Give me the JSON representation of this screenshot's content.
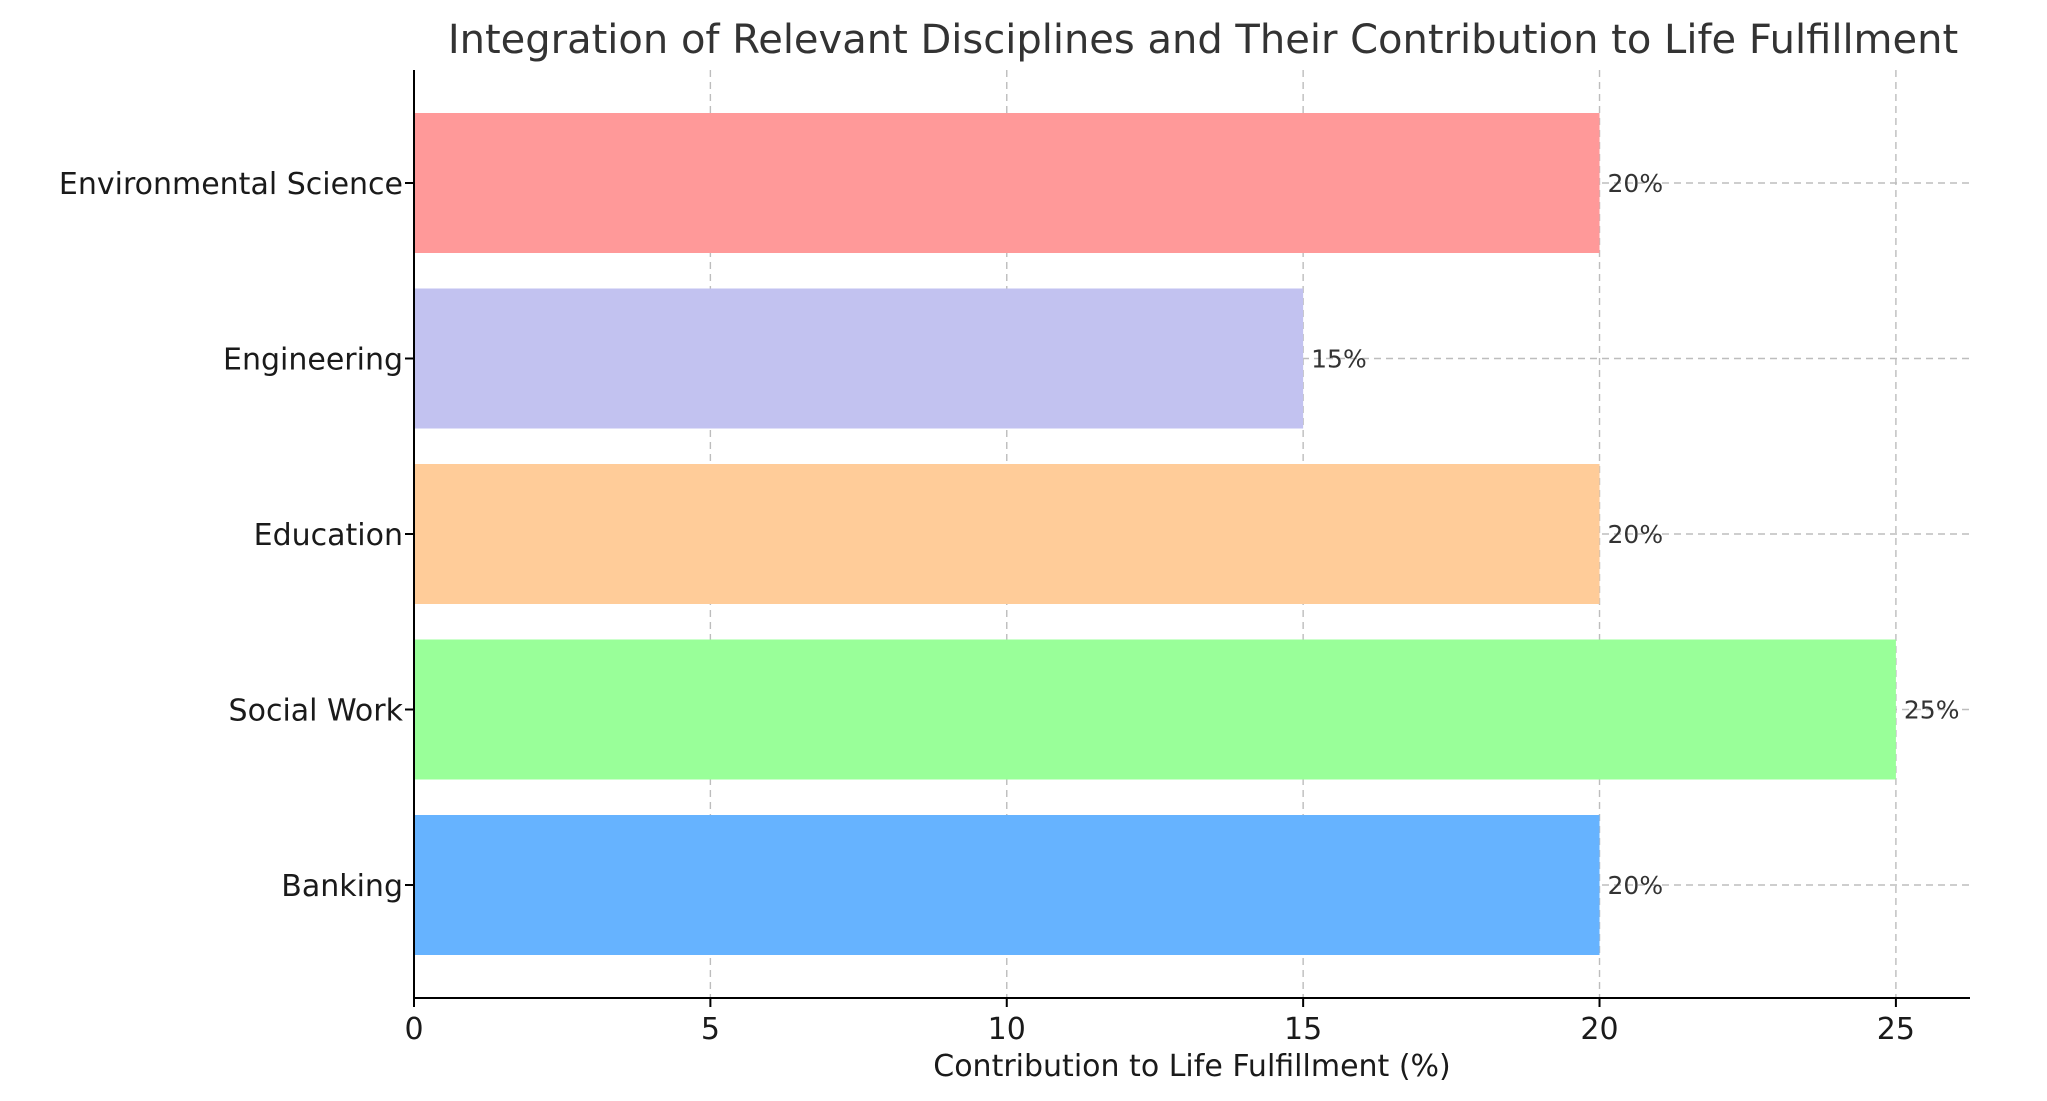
{
  "chart_data": {
    "type": "bar",
    "orientation": "horizontal",
    "title": "Integration of Relevant Disciplines and Their Contribution to Life Fulfillment",
    "xlabel": "Contribution to Life Fulfillment (%)",
    "ylabel": "",
    "categories": [
      "Banking",
      "Social Work",
      "Education",
      "Engineering",
      "Environmental Science"
    ],
    "values": [
      20,
      25,
      20,
      15,
      20
    ],
    "data_labels": [
      "20%",
      "25%",
      "20%",
      "15%",
      "20%"
    ],
    "colors": [
      "#66b3ff",
      "#99ff99",
      "#ffcc99",
      "#c2c2f0",
      "#ff9999"
    ],
    "xlim": [
      0,
      26.25
    ],
    "xticks": [
      "0",
      "5",
      "10",
      "15",
      "20",
      "25"
    ],
    "grid": true
  }
}
